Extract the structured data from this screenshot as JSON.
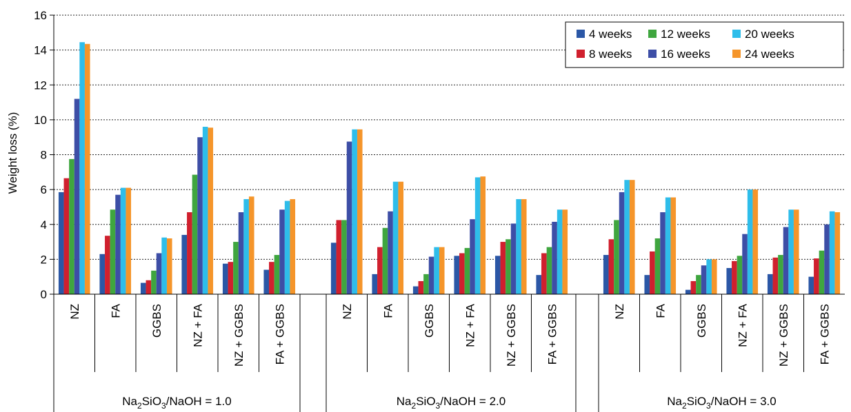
{
  "chart_data": {
    "type": "bar",
    "ylabel": "Weight loss (%)",
    "ylim": [
      0,
      16
    ],
    "yticks": [
      0,
      2,
      4,
      6,
      8,
      10,
      12,
      14,
      16
    ],
    "grid": true,
    "legend_position": "top-right",
    "categories": [
      "NZ",
      "FA",
      "GGBS",
      "NZ + FA",
      "NZ + GGBS",
      "FA + GGBS"
    ],
    "groups": [
      {
        "label_main": "Na",
        "label_sub1": "2",
        "label_mid": "SiO",
        "label_sub2": "3",
        "label_tail": "/NaOH = 1.0"
      },
      {
        "label_main": "Na",
        "label_sub1": "2",
        "label_mid": "SiO",
        "label_sub2": "3",
        "label_tail": "/NaOH = 2.0"
      },
      {
        "label_main": "Na",
        "label_sub1": "2",
        "label_mid": "SiO",
        "label_sub2": "3",
        "label_tail": "/NaOH = 3.0"
      }
    ],
    "series": [
      {
        "name": "4 weeks",
        "color": "#2b57a6",
        "values": [
          [
            5.85,
            2.3,
            0.65,
            3.4,
            1.75,
            1.4
          ],
          [
            2.95,
            1.15,
            0.45,
            2.2,
            2.2,
            1.1
          ],
          [
            2.25,
            1.1,
            0.25,
            1.5,
            1.15,
            1.0
          ]
        ]
      },
      {
        "name": "8 weeks",
        "color": "#d0202e",
        "values": [
          [
            6.65,
            3.35,
            0.8,
            4.7,
            1.85,
            1.85
          ],
          [
            4.25,
            2.7,
            0.75,
            2.35,
            3.0,
            2.35
          ],
          [
            3.15,
            2.45,
            0.75,
            1.9,
            2.1,
            2.05
          ]
        ]
      },
      {
        "name": "12 weeks",
        "color": "#3fa63f",
        "values": [
          [
            7.75,
            4.85,
            1.35,
            6.85,
            3.0,
            2.25
          ],
          [
            4.25,
            3.8,
            1.15,
            2.65,
            3.15,
            2.7
          ],
          [
            4.25,
            3.2,
            1.1,
            2.2,
            2.25,
            2.5
          ]
        ]
      },
      {
        "name": "16 weeks",
        "color": "#3d4ea6",
        "values": [
          [
            11.2,
            5.7,
            2.35,
            9.0,
            4.7,
            4.85
          ],
          [
            8.75,
            4.75,
            2.15,
            4.3,
            4.05,
            4.15
          ],
          [
            5.85,
            4.7,
            1.65,
            3.45,
            3.85,
            4.0
          ]
        ]
      },
      {
        "name": "20 weeks",
        "color": "#2ebdea",
        "values": [
          [
            14.45,
            6.1,
            3.25,
            9.6,
            5.45,
            5.35
          ],
          [
            9.45,
            6.45,
            2.7,
            6.7,
            5.45,
            4.85
          ],
          [
            6.55,
            5.55,
            2.0,
            6.0,
            4.85,
            4.75
          ]
        ]
      },
      {
        "name": "24 weeks",
        "color": "#f5952a",
        "values": [
          [
            14.35,
            6.1,
            3.2,
            9.55,
            5.6,
            5.45
          ],
          [
            9.45,
            6.45,
            2.7,
            6.75,
            5.45,
            4.85
          ],
          [
            6.55,
            5.55,
            2.0,
            6.0,
            4.85,
            4.7
          ]
        ]
      }
    ]
  }
}
